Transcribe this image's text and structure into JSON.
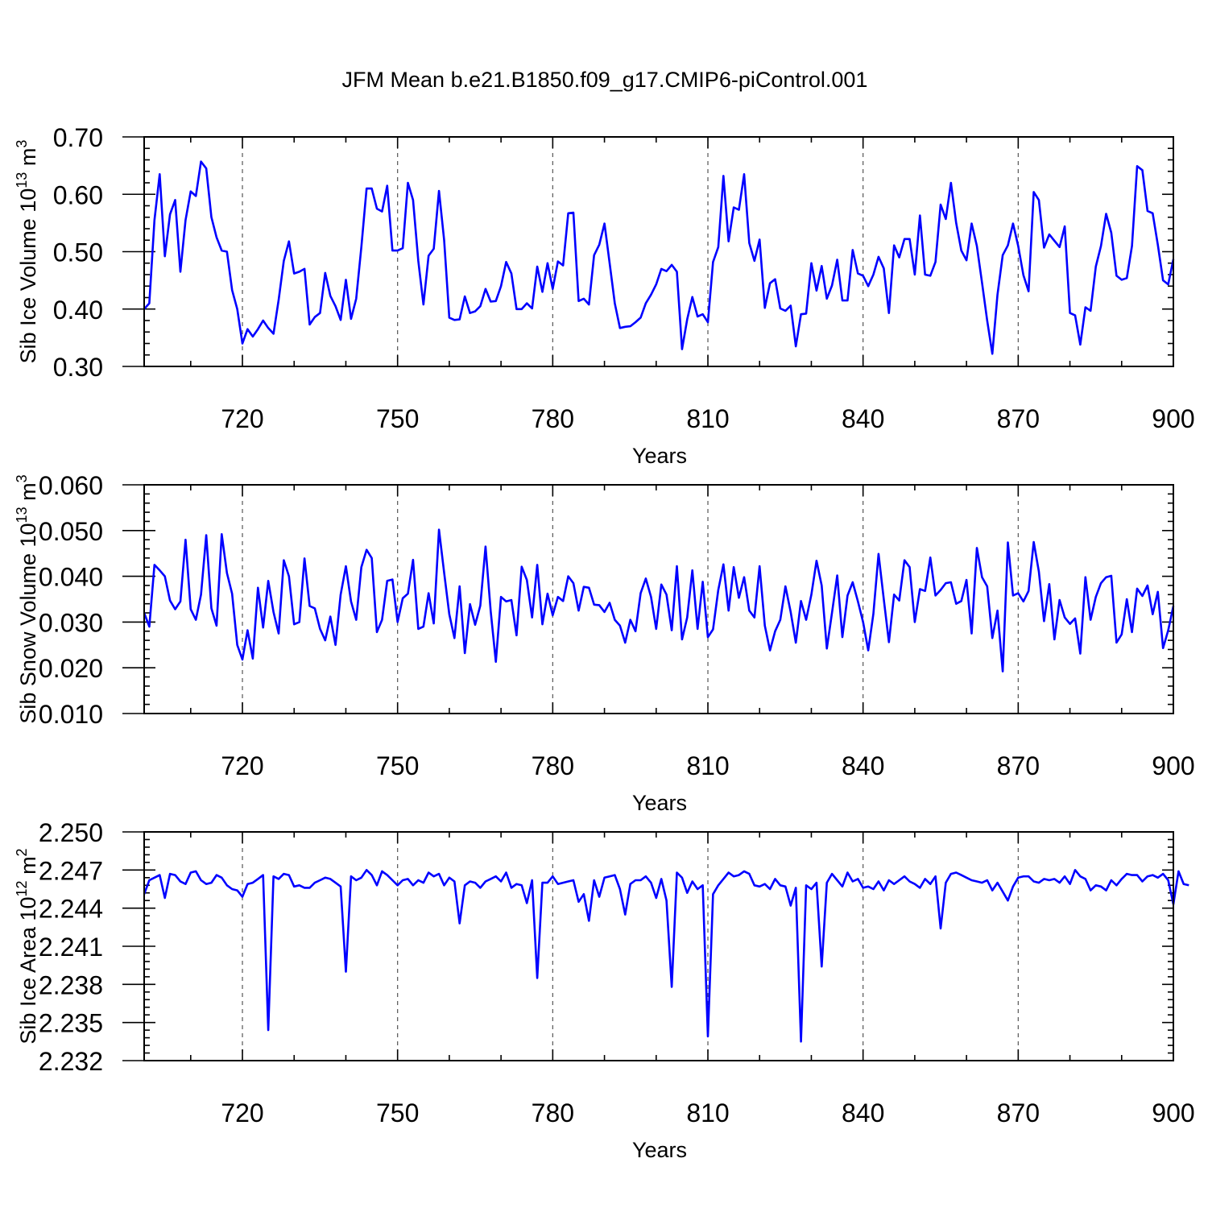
{
  "title": "JFM Mean b.e21.B1850.f09_g17.CMIP6-piControl.001",
  "series_color": "#0000ff",
  "chart_data": [
    {
      "type": "line",
      "name": "ice-volume",
      "ylabel_main": "Sib Ice Volume 10",
      "ylabel_exp": "13",
      "ylabel_unit": " m",
      "ylabel_unit_exp": "3",
      "xlabel": "Years",
      "xlim": [
        701,
        900
      ],
      "ylim": [
        0.3,
        0.7
      ],
      "x_ticks": [
        720,
        750,
        780,
        810,
        840,
        870,
        900
      ],
      "x_tick_labels": [
        "720",
        "750",
        "780",
        "810",
        "840",
        "870",
        "900"
      ],
      "y_ticks": [
        0.3,
        0.4,
        0.5,
        0.6,
        0.7
      ],
      "y_tick_labels": [
        "0.30",
        "0.40",
        "0.50",
        "0.60",
        "0.70"
      ],
      "x_start": 701,
      "values": [
        0.4,
        0.41,
        0.555,
        0.635,
        0.492,
        0.565,
        0.59,
        0.465,
        0.555,
        0.605,
        0.597,
        0.657,
        0.645,
        0.56,
        0.525,
        0.502,
        0.5,
        0.433,
        0.4,
        0.34,
        0.365,
        0.352,
        0.365,
        0.38,
        0.367,
        0.357,
        0.416,
        0.484,
        0.518,
        0.462,
        0.465,
        0.47,
        0.373,
        0.386,
        0.393,
        0.463,
        0.423,
        0.405,
        0.381,
        0.451,
        0.383,
        0.418,
        0.508,
        0.61,
        0.61,
        0.575,
        0.57,
        0.615,
        0.502,
        0.502,
        0.506,
        0.62,
        0.59,
        0.484,
        0.408,
        0.493,
        0.505,
        0.606,
        0.52,
        0.385,
        0.381,
        0.382,
        0.422,
        0.393,
        0.396,
        0.405,
        0.435,
        0.413,
        0.414,
        0.44,
        0.482,
        0.462,
        0.4,
        0.4,
        0.41,
        0.401,
        0.474,
        0.43,
        0.48,
        0.435,
        0.483,
        0.476,
        0.567,
        0.568,
        0.414,
        0.418,
        0.408,
        0.494,
        0.512,
        0.549,
        0.48,
        0.41,
        0.367,
        0.369,
        0.37,
        0.377,
        0.385,
        0.41,
        0.425,
        0.443,
        0.47,
        0.466,
        0.477,
        0.465,
        0.33,
        0.382,
        0.421,
        0.387,
        0.391,
        0.377,
        0.482,
        0.508,
        0.632,
        0.518,
        0.577,
        0.573,
        0.635,
        0.515,
        0.484,
        0.521,
        0.402,
        0.445,
        0.452,
        0.401,
        0.397,
        0.406,
        0.335,
        0.391,
        0.392,
        0.48,
        0.432,
        0.475,
        0.418,
        0.441,
        0.486,
        0.415,
        0.415,
        0.503,
        0.462,
        0.458,
        0.44,
        0.46,
        0.491,
        0.471,
        0.393,
        0.511,
        0.49,
        0.522,
        0.522,
        0.46,
        0.563,
        0.46,
        0.458,
        0.482,
        0.582,
        0.557,
        0.62,
        0.55,
        0.502,
        0.485,
        0.549,
        0.51,
        0.446,
        0.38,
        0.322,
        0.425,
        0.494,
        0.511,
        0.549,
        0.51,
        0.459,
        0.431,
        0.604,
        0.59,
        0.507,
        0.53,
        0.519,
        0.508,
        0.544,
        0.393,
        0.389,
        0.338,
        0.403,
        0.397,
        0.474,
        0.51,
        0.566,
        0.533,
        0.458,
        0.451,
        0.454,
        0.51,
        0.649,
        0.642,
        0.571,
        0.567,
        0.512,
        0.45,
        0.443,
        0.487
      ]
    },
    {
      "type": "line",
      "name": "snow-volume",
      "ylabel_main": "Sib Snow Volume 10",
      "ylabel_exp": "13",
      "ylabel_unit": " m",
      "ylabel_unit_exp": "3",
      "xlabel": "Years",
      "xlim": [
        701,
        900
      ],
      "ylim": [
        0.01,
        0.06
      ],
      "x_ticks": [
        720,
        750,
        780,
        810,
        840,
        870,
        900
      ],
      "x_tick_labels": [
        "720",
        "750",
        "780",
        "810",
        "840",
        "870",
        "900"
      ],
      "y_ticks": [
        0.01,
        0.02,
        0.03,
        0.04,
        0.05,
        0.06
      ],
      "y_tick_labels": [
        "0.010",
        "0.020",
        "0.030",
        "0.040",
        "0.050",
        "0.060"
      ],
      "x_start": 701,
      "values": [
        0.032,
        0.029,
        0.0425,
        0.0413,
        0.04,
        0.0347,
        0.0328,
        0.0345,
        0.048,
        0.0328,
        0.0305,
        0.036,
        0.049,
        0.033,
        0.0292,
        0.0492,
        0.0407,
        0.0362,
        0.025,
        0.0218,
        0.0282,
        0.022,
        0.0375,
        0.0288,
        0.039,
        0.0322,
        0.0275,
        0.0435,
        0.04,
        0.0295,
        0.03,
        0.0439,
        0.0335,
        0.033,
        0.0285,
        0.026,
        0.0312,
        0.025,
        0.036,
        0.0422,
        0.0345,
        0.0305,
        0.042,
        0.0458,
        0.044,
        0.0278,
        0.0305,
        0.039,
        0.0393,
        0.03,
        0.0352,
        0.0362,
        0.0436,
        0.0285,
        0.029,
        0.0363,
        0.0297,
        0.0502,
        0.0408,
        0.0317,
        0.0265,
        0.0378,
        0.0232,
        0.0339,
        0.0294,
        0.0336,
        0.0465,
        0.0324,
        0.0213,
        0.0355,
        0.0345,
        0.0348,
        0.0271,
        0.0421,
        0.0392,
        0.031,
        0.0425,
        0.0295,
        0.0362,
        0.0315,
        0.0355,
        0.0346,
        0.04,
        0.0385,
        0.0325,
        0.0377,
        0.0375,
        0.0338,
        0.0337,
        0.0322,
        0.0342,
        0.0305,
        0.0292,
        0.0255,
        0.0305,
        0.028,
        0.0363,
        0.0395,
        0.0355,
        0.0285,
        0.0382,
        0.036,
        0.0282,
        0.0422,
        0.0262,
        0.031,
        0.0413,
        0.0285,
        0.0388,
        0.0267,
        0.0284,
        0.037,
        0.0426,
        0.0325,
        0.042,
        0.0353,
        0.0398,
        0.0325,
        0.031,
        0.0422,
        0.0292,
        0.0238,
        0.028,
        0.0305,
        0.0378,
        0.0322,
        0.0255,
        0.0346,
        0.0305,
        0.036,
        0.0434,
        0.038,
        0.0242,
        0.032,
        0.0402,
        0.0267,
        0.0358,
        0.0387,
        0.0345,
        0.03,
        0.0238,
        0.0318,
        0.0449,
        0.035,
        0.0256,
        0.036,
        0.0347,
        0.0435,
        0.042,
        0.03,
        0.0372,
        0.0368,
        0.0441,
        0.0358,
        0.037,
        0.0385,
        0.0387,
        0.034,
        0.0346,
        0.0392,
        0.0275,
        0.0462,
        0.0398,
        0.0378,
        0.0265,
        0.0325,
        0.0192,
        0.0474,
        0.0358,
        0.0363,
        0.0345,
        0.0368,
        0.0475,
        0.041,
        0.0302,
        0.0383,
        0.0262,
        0.0348,
        0.031,
        0.0296,
        0.0308,
        0.0231,
        0.0398,
        0.0305,
        0.0355,
        0.0385,
        0.0398,
        0.0401,
        0.0255,
        0.0273,
        0.035,
        0.0278,
        0.0373,
        0.0357,
        0.038,
        0.0317,
        0.0366,
        0.0243,
        0.0282,
        0.0335
      ]
    },
    {
      "type": "line",
      "name": "ice-area",
      "ylabel_main": "Sib Ice Area 10",
      "ylabel_exp": "12",
      "ylabel_unit": " m",
      "ylabel_unit_exp": "2",
      "xlabel": "Years",
      "xlim": [
        701,
        900
      ],
      "ylim": [
        2.232,
        2.25
      ],
      "x_ticks": [
        720,
        750,
        780,
        810,
        840,
        870,
        900
      ],
      "x_tick_labels": [
        "720",
        "750",
        "780",
        "810",
        "840",
        "870",
        "900"
      ],
      "y_ticks": [
        2.232,
        2.235,
        2.238,
        2.241,
        2.244,
        2.247,
        2.25
      ],
      "y_tick_labels": [
        "2.232",
        "2.235",
        "2.238",
        "2.241",
        "2.244",
        "2.247",
        "2.250"
      ],
      "x_start": 701,
      "values": [
        2.2451,
        2.2462,
        2.2464,
        2.2466,
        2.2448,
        2.2467,
        2.2466,
        2.2461,
        2.2459,
        2.2468,
        2.2469,
        2.2462,
        2.2459,
        2.246,
        2.2466,
        2.2464,
        2.2458,
        2.2455,
        2.2454,
        2.2449,
        2.2459,
        2.246,
        2.2463,
        2.2466,
        2.2344,
        2.2465,
        2.2463,
        2.2467,
        2.2466,
        2.2457,
        2.2458,
        2.2456,
        2.2456,
        2.246,
        2.2462,
        2.2464,
        2.2463,
        2.246,
        2.2457,
        2.239,
        2.2465,
        2.2462,
        2.2464,
        2.247,
        2.2466,
        2.2458,
        2.2469,
        2.2466,
        2.2462,
        2.2458,
        2.2462,
        2.2463,
        2.2458,
        2.2462,
        2.246,
        2.2468,
        2.2465,
        2.2467,
        2.2458,
        2.2464,
        2.2461,
        2.2428,
        2.2458,
        2.2461,
        2.246,
        2.2456,
        2.2461,
        2.2463,
        2.2465,
        2.2461,
        2.2468,
        2.2456,
        2.2459,
        2.2458,
        2.2444,
        2.2462,
        2.2385,
        2.246,
        2.246,
        2.2465,
        2.2459,
        2.246,
        2.2461,
        2.2462,
        2.2445,
        2.2451,
        2.243,
        2.2462,
        2.2449,
        2.2464,
        2.2465,
        2.2466,
        2.2455,
        2.2435,
        2.2459,
        2.2462,
        2.2462,
        2.2465,
        2.246,
        2.2448,
        2.2463,
        2.2446,
        2.2378,
        2.2468,
        2.2464,
        2.2452,
        2.2461,
        2.2455,
        2.2458,
        2.2339,
        2.2451,
        2.2458,
        2.2463,
        2.2468,
        2.2465,
        2.2466,
        2.2469,
        2.2467,
        2.2458,
        2.2457,
        2.2459,
        2.2455,
        2.2463,
        2.2458,
        2.2457,
        2.2442,
        2.2456,
        2.2335,
        2.2458,
        2.2455,
        2.246,
        2.2394,
        2.246,
        2.2467,
        2.2462,
        2.2457,
        2.2468,
        2.2461,
        2.2463,
        2.2456,
        2.2457,
        2.2455,
        2.2461,
        2.2454,
        2.2462,
        2.2459,
        2.2462,
        2.2465,
        2.2461,
        2.2459,
        2.2456,
        2.2463,
        2.2459,
        2.2465,
        2.2424,
        2.246,
        2.2467,
        2.2468,
        2.2466,
        2.2464,
        2.2462,
        2.2461,
        2.246,
        2.2462,
        2.2454,
        2.246,
        2.2453,
        2.2446,
        2.2457,
        2.2464,
        2.2465,
        2.2465,
        2.2461,
        2.246,
        2.2463,
        2.2462,
        2.2463,
        2.246,
        2.2465,
        2.2459,
        2.247,
        2.2465,
        2.2463,
        2.2454,
        2.2458,
        2.2457,
        2.2454,
        2.2462,
        2.2458,
        2.2463,
        2.2467,
        2.2466,
        2.2466,
        2.2461,
        2.2465,
        2.2466,
        2.2464,
        2.2467,
        2.2462,
        2.2443,
        2.2469,
        2.2459,
        2.2458
      ]
    }
  ]
}
